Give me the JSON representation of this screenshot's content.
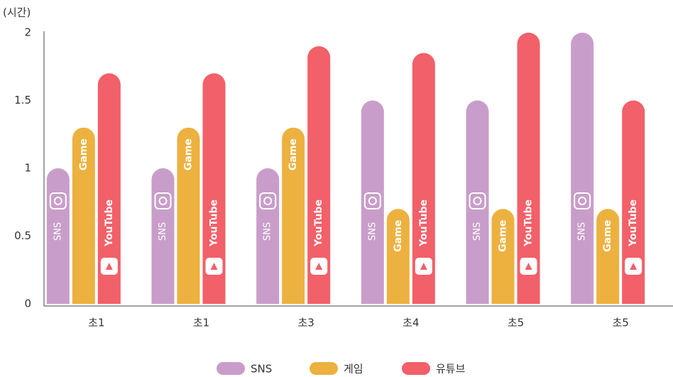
{
  "chart_data": {
    "type": "bar",
    "y_label": "(시간)",
    "categories": [
      "초1",
      "초1",
      "초3",
      "초4",
      "초5",
      "초5"
    ],
    "series": [
      {
        "name": "SNS",
        "color": "#c99dca",
        "values": [
          1,
          1,
          1,
          1.5,
          1.5,
          2
        ]
      },
      {
        "name": "게임",
        "color": "#edb13f",
        "values": [
          1.3,
          1.3,
          1.3,
          0.7,
          0.7,
          0.7
        ]
      },
      {
        "name": "유튜브",
        "color": "#f26069",
        "values": [
          1.7,
          1.7,
          1.9,
          1.85,
          2,
          1.5
        ]
      }
    ],
    "bar_labels": [
      "SNS",
      "Game",
      "YouTube"
    ],
    "ylim": [
      0,
      2
    ],
    "yticks": [
      0,
      0.5,
      1,
      1.5,
      2
    ]
  }
}
